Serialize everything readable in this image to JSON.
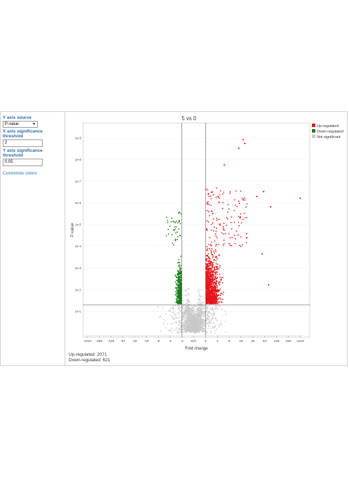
{
  "controls": {
    "y_axis_source_label": "Y axis source",
    "y_axis_source_value": "P-value",
    "x_threshold_label": "X axis significance threshold",
    "x_threshold_value": "2",
    "y_threshold_label": "Y axis significance threshold",
    "y_threshold_value": "0.05",
    "customize_colors_label": "Customize colors"
  },
  "summary": {
    "up_regulated_text": "Up-regulated: 2071",
    "down_regulated_text": "Down-regulated: 621"
  },
  "colors": {
    "up": "#e8141b",
    "down": "#1a7d1a",
    "ns": "#c8c8c8"
  },
  "chart_data": {
    "type": "scatter",
    "title": "5 vs 0",
    "xlabel": "Fold change",
    "ylabel": "P-value",
    "x_ticks": [
      "-1024",
      "-256",
      "-128",
      "-64",
      "-32",
      "-16",
      "-8",
      "-4",
      "-2",
      "N/C",
      "2",
      "4",
      "8",
      "16",
      "32",
      "64",
      "128",
      "256",
      "1024"
    ],
    "y_ticks": [
      "1e-1",
      "1e-2",
      "1e-3",
      "1e-4",
      "1e-5",
      "1e-6",
      "1e-7",
      "1e-8",
      "1e-9"
    ],
    "x_threshold": 2,
    "y_threshold": 0.05,
    "legend": [
      "Up-regulated",
      "Down-regulated",
      "Not significant"
    ],
    "legend_position": "top-right",
    "outlier_points_up": [
      {
        "x": 1024,
        "y": 6e-07
      },
      {
        "x": 90,
        "y": 1.5e-06
      },
      {
        "x": 14,
        "y": 3e-09
      },
      {
        "x": 18,
        "y": 1.2e-09
      },
      {
        "x": 20,
        "y": 1.8e-09
      },
      {
        "x": 6,
        "y": 1.8e-08
      },
      {
        "x": 60,
        "y": 3e-07
      },
      {
        "x": 40,
        "y": 5e-07
      },
      {
        "x": 55,
        "y": 0.00022
      },
      {
        "x": 80,
        "y": 0.006
      }
    ]
  }
}
